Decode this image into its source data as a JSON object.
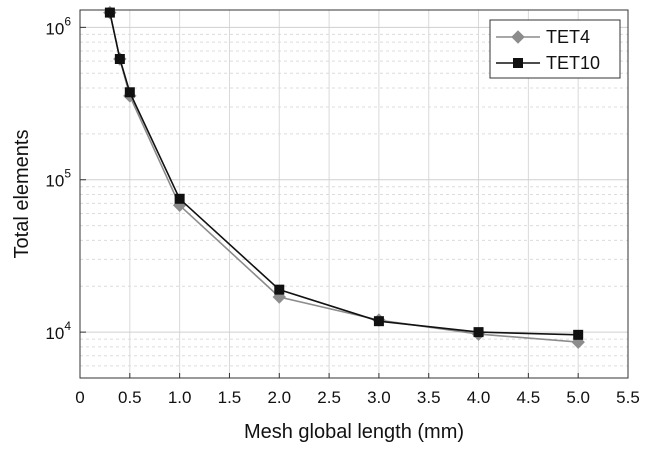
{
  "chart_data": {
    "type": "line",
    "title": "",
    "xlabel": "Mesh global length (mm)",
    "ylabel": "Total elements",
    "xlim": [
      0,
      5.5
    ],
    "ylim": [
      5000,
      1300000
    ],
    "yscale": "log",
    "grid": true,
    "legend_position": "top-right",
    "xticks": [
      "0",
      "0.5",
      "1.0",
      "1.5",
      "2.0",
      "2.5",
      "3.0",
      "3.5",
      "4.0",
      "4.5",
      "5.0",
      "5.5"
    ],
    "yticks": [
      {
        "base": "10",
        "exp": "4",
        "value": 10000
      },
      {
        "base": "10",
        "exp": "5",
        "value": 100000
      },
      {
        "base": "10",
        "exp": "6",
        "value": 1000000
      }
    ],
    "series": [
      {
        "name": "TET4",
        "color": "#8c8c8c",
        "marker": "diamond",
        "x": [
          0.3,
          0.4,
          0.5,
          1.0,
          2.0,
          3.0,
          4.0,
          5.0
        ],
        "y": [
          1250000,
          620000,
          355000,
          68000,
          17000,
          12000,
          9700,
          8600
        ]
      },
      {
        "name": "TET10",
        "color": "#111111",
        "marker": "square",
        "x": [
          0.3,
          0.4,
          0.5,
          1.0,
          2.0,
          3.0,
          4.0,
          5.0
        ],
        "y": [
          1250000,
          620000,
          375000,
          75000,
          19000,
          11800,
          10000,
          9600
        ]
      }
    ]
  }
}
